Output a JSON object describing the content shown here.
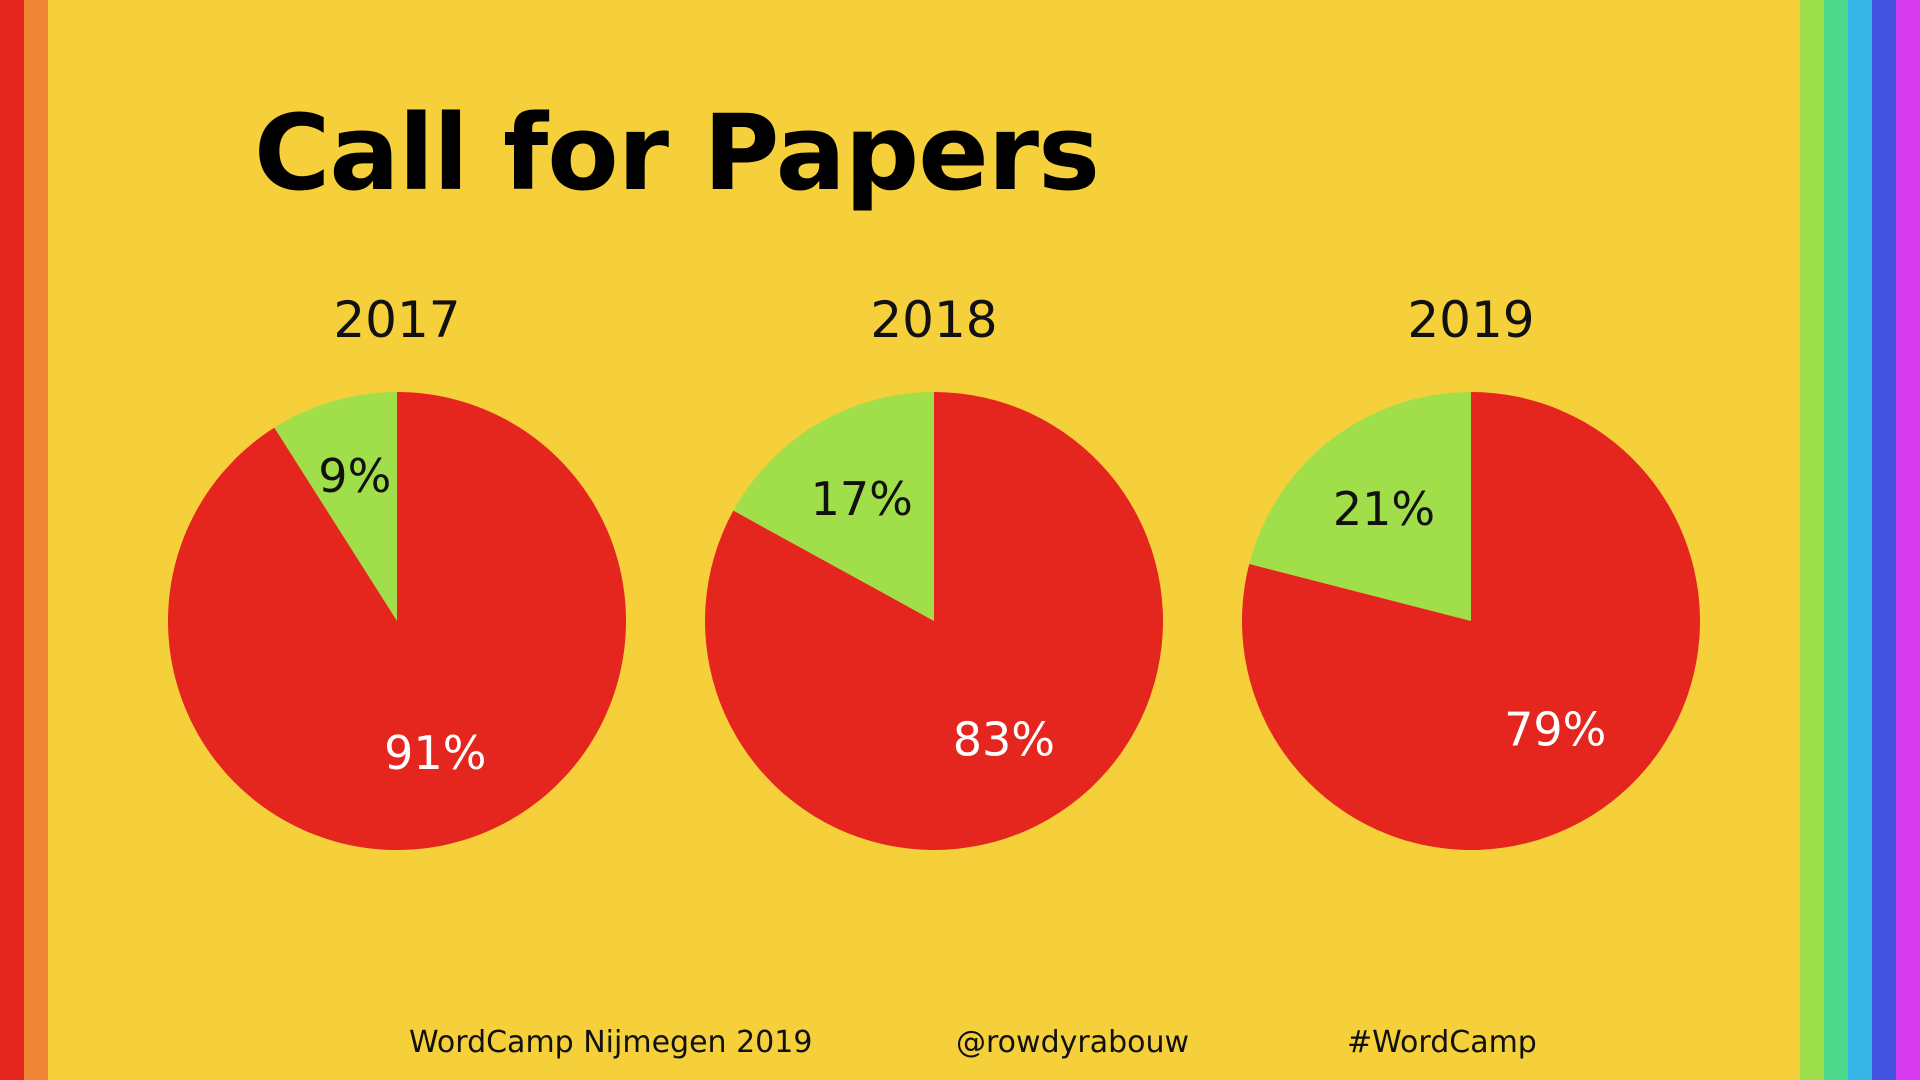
{
  "slide": {
    "background": "#f6d03a",
    "left_stripes": [
      "#e5261e",
      "#ef8635"
    ],
    "right_stripes": [
      "#9ddf4a",
      "#4cd98a",
      "#35b6e6",
      "#4453e0",
      "#d73bf0"
    ],
    "title": "Call for Papers"
  },
  "chart_data": [
    {
      "type": "pie",
      "title": "2017",
      "slices": [
        {
          "value": 9,
          "label": "9%",
          "color": "#a1df4a"
        },
        {
          "value": 91,
          "label": "91%",
          "color": "#e5261e"
        }
      ]
    },
    {
      "type": "pie",
      "title": "2018",
      "slices": [
        {
          "value": 17,
          "label": "17%",
          "color": "#a1df4a"
        },
        {
          "value": 83,
          "label": "83%",
          "color": "#e5261e"
        }
      ]
    },
    {
      "type": "pie",
      "title": "2019",
      "slices": [
        {
          "value": 21,
          "label": "21%",
          "color": "#a1df4a"
        },
        {
          "value": 79,
          "label": "79%",
          "color": "#e5261e"
        }
      ]
    }
  ],
  "footer": {
    "event": "WordCamp Nijmegen 2019",
    "handle": "@rowdyrabouw",
    "hashtag": "#WordCamp"
  }
}
